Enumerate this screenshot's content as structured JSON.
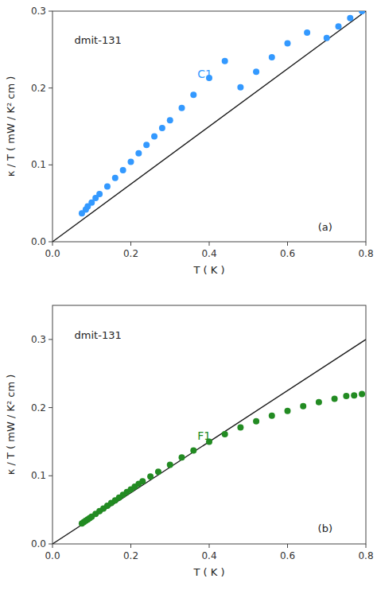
{
  "chart_data": [
    {
      "type": "scatter",
      "title": "dmit-131",
      "xlabel": "T  ( K )",
      "ylabel": "κ / T  ( mW / K² cm )",
      "xlim": [
        0.0,
        0.8
      ],
      "ylim": [
        0.0,
        0.3
      ],
      "xticks": [
        {
          "value": 0.0,
          "label": "0.0"
        },
        0.2,
        0.4,
        0.6,
        0.8
      ],
      "yticks": [
        {
          "value": 0.0,
          "label": "0.0"
        },
        0.1,
        0.2,
        0.3
      ],
      "grid": false,
      "series": [
        {
          "type": "line",
          "color": "#1a1a1a",
          "x": [
            0.0,
            0.8
          ],
          "values": [
            0.0,
            0.3
          ]
        },
        {
          "type": "scatter",
          "color": "#3399FF",
          "x": [
            0.075,
            0.085,
            0.09,
            0.1,
            0.11,
            0.12,
            0.14,
            0.16,
            0.18,
            0.2,
            0.22,
            0.24,
            0.26,
            0.28,
            0.3,
            0.33,
            0.36,
            0.4,
            0.44,
            0.48,
            0.52,
            0.56,
            0.6,
            0.65,
            0.7,
            0.73,
            0.76,
            0.79
          ],
          "values": [
            0.037,
            0.042,
            0.046,
            0.051,
            0.057,
            0.062,
            0.072,
            0.083,
            0.093,
            0.104,
            0.115,
            0.126,
            0.137,
            0.148,
            0.158,
            0.174,
            0.191,
            0.213,
            0.235,
            0.201,
            0.221,
            0.24,
            0.258,
            0.272,
            0.265,
            0.28,
            0.291,
            0.3
          ]
        }
      ],
      "annotations": [
        {
          "text": "C1",
          "x": 0.37,
          "y": 0.213,
          "color": "#3399FF"
        },
        {
          "text": "(a)"
        }
      ]
    },
    {
      "type": "scatter",
      "title": "dmit-131",
      "xlabel": "T  ( K )",
      "ylabel": "κ / T  ( mW / K² cm )",
      "xlim": [
        0.0,
        0.8
      ],
      "ylim": [
        0.0,
        0.35
      ],
      "xticks": [
        {
          "value": 0.0,
          "label": "0.0"
        },
        0.2,
        0.4,
        0.6,
        0.8
      ],
      "yticks": [
        {
          "value": 0.0,
          "label": "0.0"
        },
        0.1,
        0.2,
        0.3
      ],
      "grid": false,
      "series": [
        {
          "type": "line",
          "color": "#1a1a1a",
          "x": [
            0.0,
            0.8
          ],
          "values": [
            0.0,
            0.3
          ]
        },
        {
          "type": "scatter",
          "color": "#228B22",
          "x": [
            0.075,
            0.08,
            0.085,
            0.09,
            0.095,
            0.1,
            0.11,
            0.12,
            0.13,
            0.14,
            0.15,
            0.16,
            0.17,
            0.18,
            0.19,
            0.2,
            0.21,
            0.22,
            0.23,
            0.25,
            0.27,
            0.3,
            0.33,
            0.36,
            0.4,
            0.44,
            0.48,
            0.52,
            0.56,
            0.6,
            0.64,
            0.68,
            0.72,
            0.75,
            0.77,
            0.79
          ],
          "values": [
            0.03,
            0.032,
            0.034,
            0.036,
            0.038,
            0.04,
            0.044,
            0.048,
            0.052,
            0.056,
            0.06,
            0.064,
            0.068,
            0.072,
            0.076,
            0.08,
            0.084,
            0.088,
            0.092,
            0.099,
            0.106,
            0.116,
            0.127,
            0.137,
            0.15,
            0.161,
            0.171,
            0.18,
            0.188,
            0.195,
            0.202,
            0.208,
            0.213,
            0.217,
            0.218,
            0.22
          ]
        }
      ],
      "annotations": [
        {
          "text": "F1",
          "x": 0.37,
          "y": 0.153,
          "color": "#228B22"
        },
        {
          "text": "(b)"
        }
      ]
    }
  ]
}
